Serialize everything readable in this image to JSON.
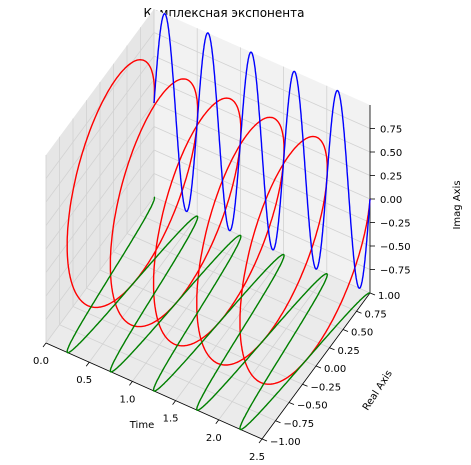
{
  "chart_data": {
    "type": "line",
    "projection": "3d",
    "title": "Комплексная экспонента",
    "xlabel": "Time",
    "ylabel": "Real Axis",
    "zlabel": "Imag Axis",
    "xlim": [
      0,
      2.5
    ],
    "ylim": [
      -1,
      1
    ],
    "zlim": [
      -1,
      1
    ],
    "xticks": [
      "0.0",
      "0.5",
      "1.0",
      "1.5",
      "2.0",
      "2.5"
    ],
    "yticks": [
      "−1.00",
      "−0.75",
      "−0.50",
      "−0.25",
      "0.00",
      "0.25",
      "0.50",
      "0.75",
      "1.00"
    ],
    "zticks": [
      "−0.75",
      "−0.50",
      "−0.25",
      "0.00",
      "0.25",
      "0.50",
      "0.75"
    ],
    "grid": true,
    "frequency": 2,
    "t_range": [
      0,
      2.5
    ],
    "series": [
      {
        "color": "#ff0000",
        "x": "t",
        "y": "cos(2πft)",
        "z": "sin(2πft)"
      },
      {
        "color": "#008000",
        "x": "t",
        "y": "cos(2πft)",
        "z": "-1"
      },
      {
        "color": "#0000ff",
        "x": "t",
        "y": "1",
        "z": "sin(2πft)"
      }
    ]
  }
}
